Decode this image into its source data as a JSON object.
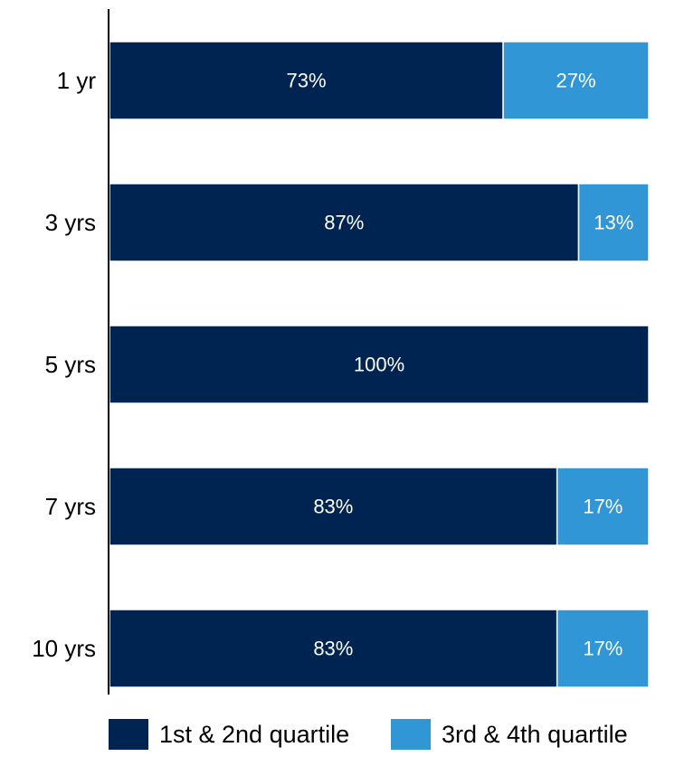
{
  "chart_data": {
    "type": "bar",
    "orientation": "horizontal",
    "stacked": true,
    "percent_stacked": true,
    "categories": [
      "1 yr",
      "3 yrs",
      "5 yrs",
      "7 yrs",
      "10 yrs"
    ],
    "series": [
      {
        "name": "1st & 2nd quartile",
        "values": [
          73,
          87,
          100,
          83,
          83
        ],
        "labels": [
          "73%",
          "87%",
          "100%",
          "83%",
          "83%"
        ],
        "color": "#002451"
      },
      {
        "name": "3rd & 4th quartile",
        "values": [
          27,
          13,
          0,
          17,
          17
        ],
        "labels": [
          "27%",
          "13%",
          "",
          "17%",
          "17%"
        ],
        "color": "#3096d6"
      }
    ],
    "xlim": [
      0,
      100
    ],
    "grid": false,
    "legend_position": "bottom"
  }
}
